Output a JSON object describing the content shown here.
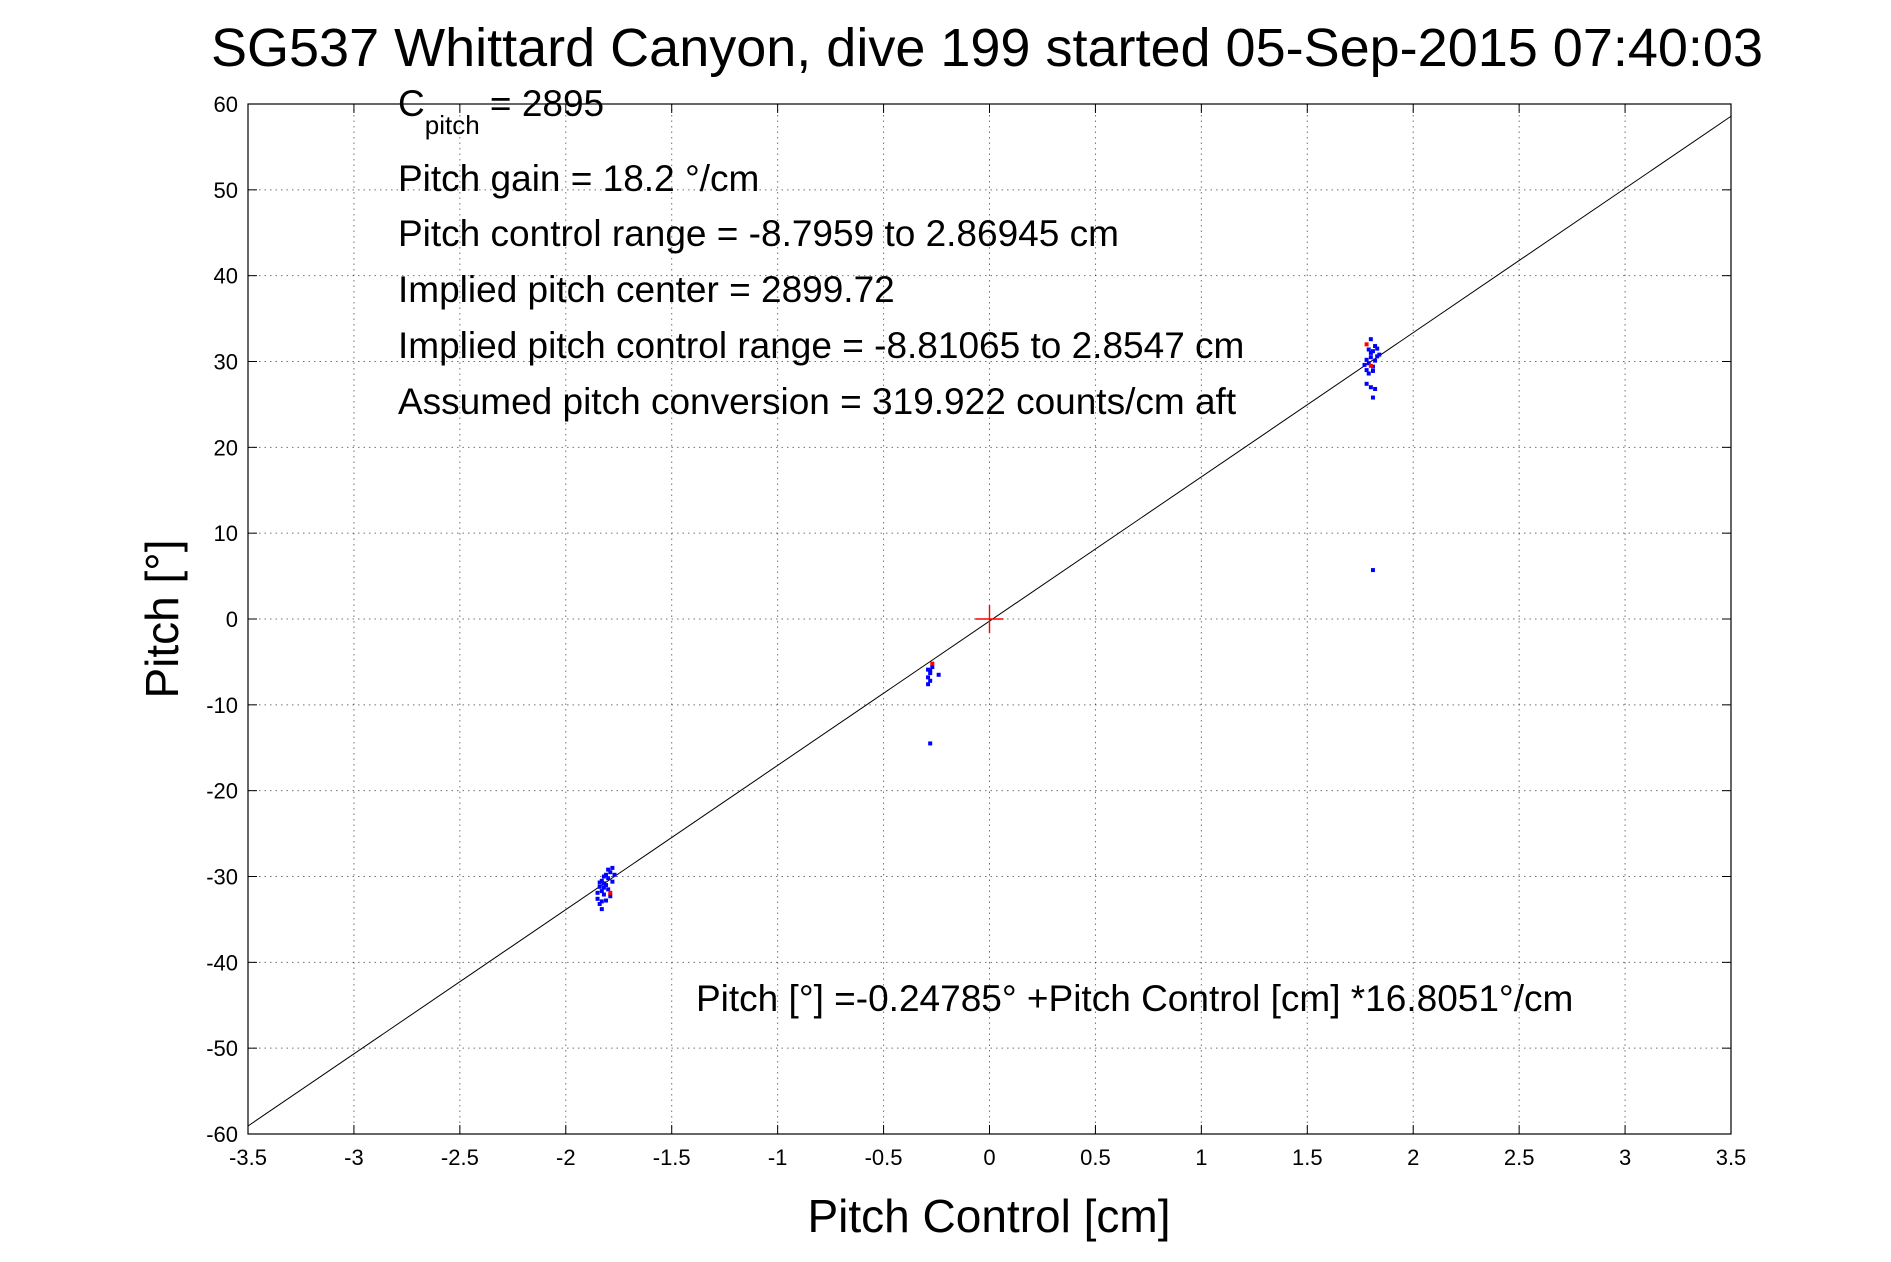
{
  "chart_data": {
    "type": "scatter",
    "title": "SG537 Whittard Canyon, dive 199 started 05-Sep-2015 07:40:03",
    "xlabel": "Pitch Control [cm]",
    "ylabel": "Pitch [°]",
    "xlim": [
      -3.5,
      3.5
    ],
    "ylim": [
      -60,
      60
    ],
    "xticks": [
      -3.5,
      -3,
      -2.5,
      -2,
      -1.5,
      -1,
      -0.5,
      0,
      0.5,
      1,
      1.5,
      2,
      2.5,
      3,
      3.5
    ],
    "xtick_labels": [
      "-3.5",
      "-3",
      "-2.5",
      "-2",
      "-1.5",
      "-1",
      "-0.5",
      "0",
      "0.5",
      "1",
      "1.5",
      "2",
      "2.5",
      "3",
      "3.5"
    ],
    "yticks": [
      -60,
      -50,
      -40,
      -30,
      -20,
      -10,
      0,
      10,
      20,
      30,
      40,
      50,
      60
    ],
    "ytick_labels": [
      "-60",
      "-50",
      "-40",
      "-30",
      "-20",
      "-10",
      "0",
      "10",
      "20",
      "30",
      "40",
      "50",
      "60"
    ],
    "grid": true,
    "annotations": {
      "c_pitch_main": "C",
      "c_pitch_sub": "pitch",
      "c_pitch_value": " = 2895",
      "pitch_gain": "Pitch gain = 18.2 °/cm",
      "pitch_control_range": "Pitch control range = -8.7959 to 2.86945 cm",
      "implied_pitch_center": "Implied pitch center = 2899.72",
      "implied_pitch_control_range": "Implied pitch control range = -8.81065 to 2.8547 cm",
      "assumed_pitch_conversion": "Assumed pitch conversion = 319.922 counts/cm aft",
      "fit_equation": "Pitch [°] =-0.24785° +Pitch Control [cm] *16.8051°/cm"
    },
    "fit_line": {
      "intercept": -0.24785,
      "slope": 16.8051,
      "color": "#000000"
    },
    "center_marker": {
      "x": 0,
      "y": 0,
      "color": "#ff0000"
    },
    "series": [
      {
        "color": "#0000ff",
        "points": [
          [
            -1.84,
            -31.2
          ],
          [
            -1.83,
            -30.5
          ],
          [
            -1.82,
            -32.1
          ],
          [
            -1.81,
            -31.0
          ],
          [
            -1.8,
            -30.2
          ],
          [
            -1.79,
            -29.5
          ],
          [
            -1.78,
            -29.0
          ],
          [
            -1.85,
            -32.6
          ],
          [
            -1.84,
            -33.2
          ],
          [
            -1.83,
            -33.8
          ],
          [
            -1.82,
            -30.8
          ],
          [
            -1.81,
            -29.8
          ],
          [
            -1.8,
            -31.5
          ],
          [
            -1.79,
            -32.3
          ],
          [
            -1.83,
            -31.7
          ],
          [
            -1.82,
            -30.0
          ],
          [
            -1.84,
            -30.7
          ],
          [
            -1.81,
            -32.8
          ],
          [
            -1.8,
            -29.2
          ],
          [
            -1.77,
            -29.8
          ],
          [
            -1.83,
            -32.9
          ],
          [
            -1.82,
            -31.3
          ],
          [
            -1.78,
            -30.6
          ],
          [
            -1.85,
            -31.9
          ],
          [
            -0.29,
            -5.9
          ],
          [
            -0.28,
            -6.3
          ],
          [
            -0.29,
            -6.8
          ],
          [
            -0.28,
            -7.2
          ],
          [
            -0.29,
            -7.6
          ],
          [
            -0.27,
            -5.6
          ],
          [
            -0.28,
            -6.0
          ],
          [
            -0.24,
            -6.5
          ],
          [
            -0.28,
            -14.5
          ],
          [
            1.78,
            29.0
          ],
          [
            1.79,
            29.8
          ],
          [
            1.8,
            30.5
          ],
          [
            1.81,
            31.2
          ],
          [
            1.82,
            31.8
          ],
          [
            1.83,
            30.6
          ],
          [
            1.79,
            28.6
          ],
          [
            1.8,
            31.0
          ],
          [
            1.81,
            29.4
          ],
          [
            1.82,
            30.1
          ],
          [
            1.78,
            30.2
          ],
          [
            1.8,
            32.6
          ],
          [
            1.83,
            31.5
          ],
          [
            1.79,
            31.4
          ],
          [
            1.81,
            28.9
          ],
          [
            1.77,
            29.6
          ],
          [
            1.8,
            27.0
          ],
          [
            1.82,
            26.8
          ],
          [
            1.81,
            25.8
          ],
          [
            1.78,
            27.4
          ],
          [
            1.84,
            30.8
          ],
          [
            1.81,
            5.7
          ]
        ]
      },
      {
        "color": "#ff0000",
        "points": [
          [
            -1.79,
            -31.9
          ],
          [
            -0.27,
            -5.2
          ],
          [
            1.78,
            32.0
          ],
          [
            1.8,
            29.5
          ]
        ]
      }
    ]
  }
}
